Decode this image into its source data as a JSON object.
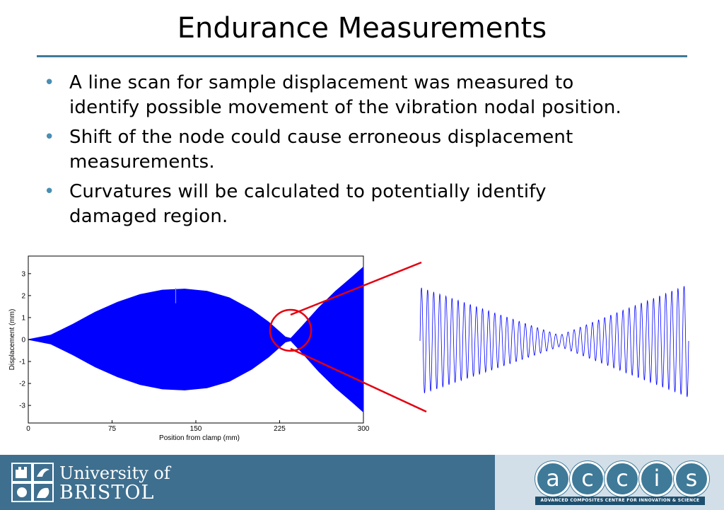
{
  "slide": {
    "title": "Endurance Measurements",
    "bullets": [
      {
        "line1": "A line scan for sample displacement was measured to",
        "line2": "identify possible movement of the vibration nodal position."
      },
      {
        "line1": "Shift of the node could cause erroneous displacement",
        "line2": "measurements."
      },
      {
        "line1": "Curvatures will be calculated to potentially identify",
        "line2": "damaged region."
      }
    ]
  },
  "chart_data": [
    {
      "type": "area",
      "title": "",
      "xlabel": "Position from clamp (mm)",
      "ylabel": "Displacement (mm)",
      "xlim": [
        0,
        300
      ],
      "ylim": [
        -3.8,
        3.8
      ],
      "x_ticks": [
        "0",
        "75",
        "150",
        "225",
        "300"
      ],
      "y_ticks": [
        "3",
        "2",
        "1",
        "0",
        "-1",
        "-2",
        "-3"
      ],
      "envelope": {
        "x": [
          0,
          20,
          40,
          60,
          80,
          100,
          120,
          140,
          160,
          180,
          200,
          215,
          225,
          230,
          235,
          245,
          260,
          275,
          290,
          300
        ],
        "amplitude": [
          0.0,
          0.2,
          0.7,
          1.25,
          1.7,
          2.05,
          2.25,
          2.3,
          2.2,
          1.9,
          1.35,
          0.8,
          0.35,
          0.12,
          0.05,
          0.6,
          1.45,
          2.2,
          2.85,
          3.3
        ]
      },
      "color": "#0000ff",
      "annotation": {
        "type": "circle",
        "x": 233,
        "y": 0,
        "color": "#e3000f"
      }
    },
    {
      "type": "line",
      "title": "",
      "description_role": "zoomed oscillation near node",
      "color": "#0000ff",
      "ylim": [
        -1,
        1
      ],
      "cycles": 44
    }
  ],
  "footer": {
    "university_line1": "University of",
    "university_line2": "BRISTOL",
    "accis_letters": [
      "a",
      "c",
      "c",
      "i",
      "s"
    ],
    "accis_tagline": "ADVANCED COMPOSITES CENTRE FOR INNOVATION & SCIENCE"
  },
  "colors": {
    "footer_bg": "#3e6f8f",
    "accent": "#3f7a99",
    "bullet": "#4a8eb3",
    "data": "#0000ff",
    "highlight": "#e3000f"
  }
}
